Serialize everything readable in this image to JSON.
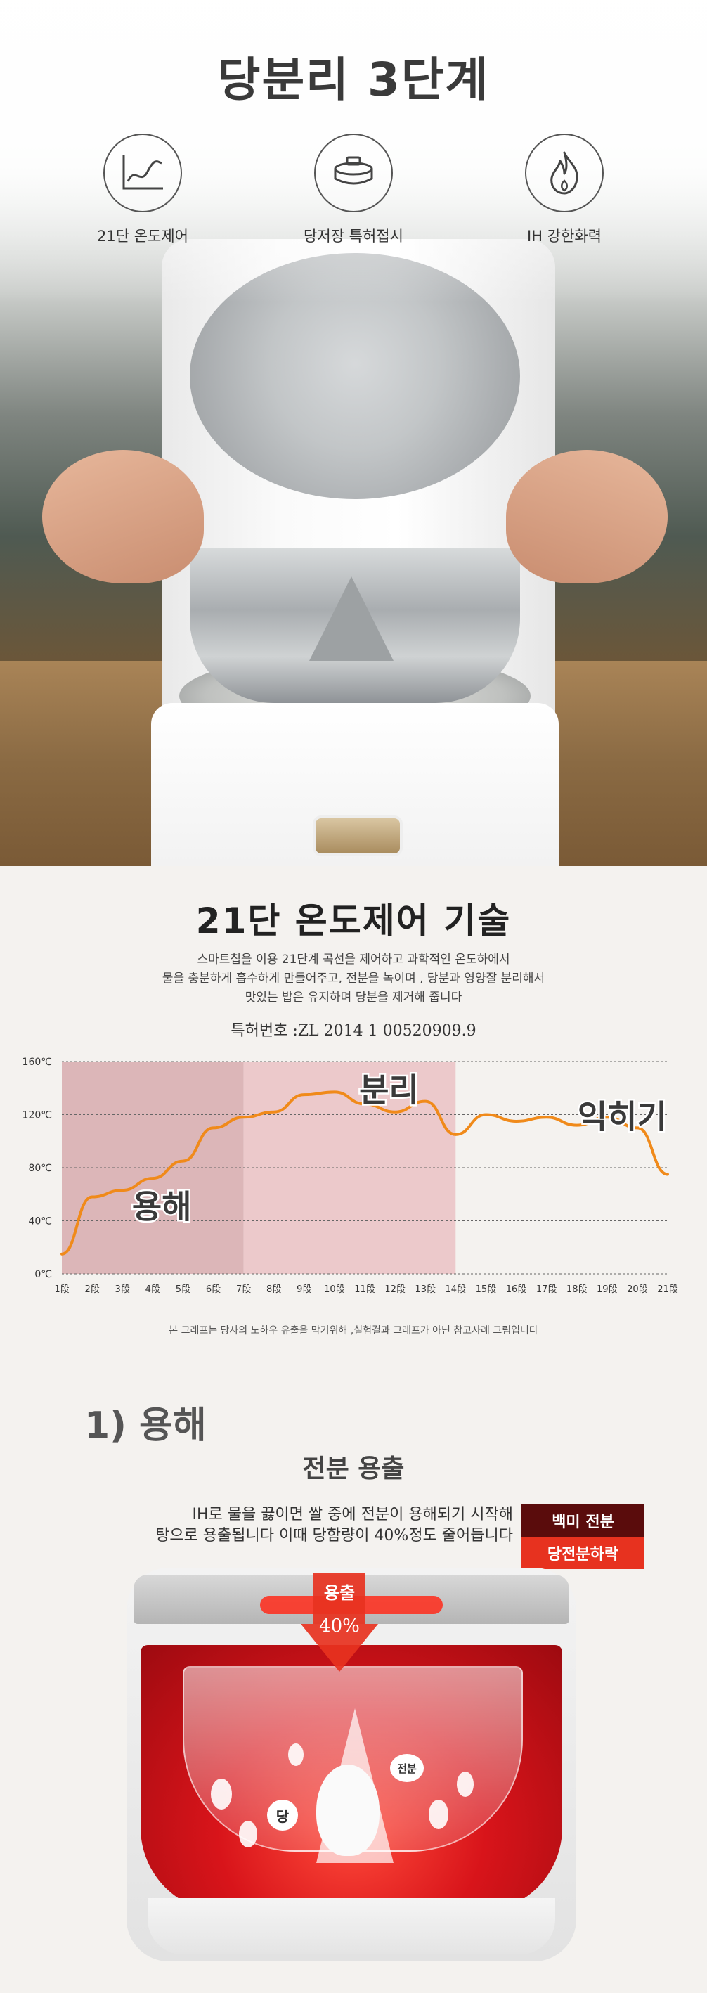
{
  "hero": {
    "title": "당분리 3단계",
    "features": [
      {
        "icon": "temperature-curve-icon",
        "label": "21단 온도제어"
      },
      {
        "icon": "steamer-plate-icon",
        "label": "당저장 특허접시"
      },
      {
        "icon": "flame-icon",
        "label": "IH 강한화력"
      }
    ]
  },
  "tech": {
    "title": "21단 온도제어 기술",
    "desc_lines": [
      "스마트칩을 이용 21단계 곡선을 제어하고 과학적인 온도하에서",
      "물을 충분하게 흡수하게 만들어주고, 전분을 녹이며 , 당분과 영양잘 분리해서",
      "맛있는 밥은 유지하며 당분을 제거해 줍니다"
    ],
    "patent": "특허번호 :ZL 2014 1 00520909.9",
    "note": "본 그래프는 당사의 노하우 유출을 막기위해 ,실험결과 그래프가 아닌 참고사례 그림입니다"
  },
  "chart_data": {
    "type": "line",
    "x": [
      "1段",
      "2段",
      "3段",
      "4段",
      "5段",
      "6段",
      "7段",
      "8段",
      "9段",
      "10段",
      "11段",
      "12段",
      "13段",
      "14段",
      "15段",
      "16段",
      "17段",
      "18段",
      "19段",
      "20段",
      "21段"
    ],
    "y_ticks": [
      "0℃",
      "40℃",
      "80℃",
      "120℃",
      "160℃"
    ],
    "ylim": [
      0,
      160
    ],
    "series": [
      {
        "values": [
          15,
          58,
          63,
          72,
          85,
          110,
          118,
          122,
          135,
          137,
          128,
          122,
          130,
          105,
          120,
          115,
          118,
          112,
          118,
          110,
          75
        ]
      }
    ],
    "regions": [
      {
        "label": "용해",
        "from": 1,
        "to": 7,
        "color": "#dcb6b8"
      },
      {
        "label": "분리",
        "from": 7,
        "to": 14,
        "color": "#ecc9cb"
      },
      {
        "label": "익히기",
        "from": 14,
        "to": 21,
        "color": ""
      }
    ],
    "grid": true,
    "line_color": "#f08a1a"
  },
  "section1": {
    "number": "1) 용해",
    "subtitle": "전분 용출",
    "text_lines": [
      "IH로 물을 끓이면 쌀 중에 전분이 용해되기 시작해",
      "탕으로 용출됩니다 이때 당함량이 40%정도 줄어듭니다"
    ],
    "tag_dark": "백미 전분",
    "tag_red": "당전분하락",
    "arrow_label": "용출",
    "arrow_value": "40%",
    "label_sugar": "당",
    "label_starch": "전분"
  },
  "colors": {
    "accent_red": "#e7321f",
    "dark_red": "#5a0c0c",
    "line_orange": "#f08a1a"
  }
}
